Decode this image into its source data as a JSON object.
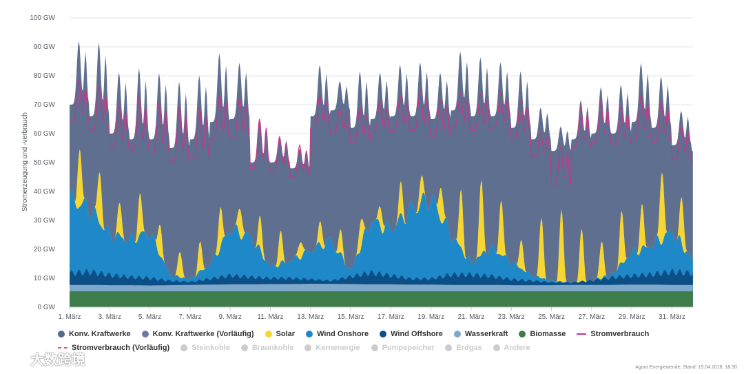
{
  "chart_data": {
    "type": "area",
    "ylabel": "Stromerzeugung und -verbrauch",
    "ylim": [
      0,
      100
    ],
    "y_ticks": [
      "0 GW",
      "10 GW",
      "20 GW",
      "30 GW",
      "40 GW",
      "50 GW",
      "60 GW",
      "70 GW",
      "80 GW",
      "90 GW",
      "100 GW"
    ],
    "x_ticks": [
      "1. März",
      "3. März",
      "5. März",
      "7. März",
      "9. März",
      "11. März",
      "13. März",
      "15. März",
      "17. März",
      "19. März",
      "21. März",
      "23. März",
      "25. März",
      "27. März",
      "29. März",
      "31. März"
    ],
    "x_tick_days": [
      1,
      3,
      5,
      7,
      9,
      11,
      13,
      15,
      17,
      19,
      21,
      23,
      25,
      27,
      29,
      31
    ],
    "xlim_days": [
      1,
      32.05
    ],
    "series_order": [
      "biomasse",
      "wasserkraft",
      "wind_offshore",
      "wind_onshore",
      "solar",
      "konv"
    ],
    "series": {
      "biomasse": {
        "name": "Biomasse",
        "color": "#3e7d4b",
        "daily": [
          5.5,
          5.5
        ]
      },
      "wasserkraft": {
        "name": "Wasserkraft",
        "color": "#7ea7c9",
        "daily": [
          2.2,
          2.2,
          2.1,
          2.1,
          2.0,
          2.1,
          2.2,
          2.3,
          2.4,
          2.4,
          2.5,
          2.5,
          2.6,
          2.6,
          2.5,
          2.4,
          2.4,
          2.3,
          2.3,
          2.2,
          2.2,
          2.2,
          2.1,
          2.1,
          2.1,
          2.2,
          2.2,
          2.2,
          2.3,
          2.3,
          2.2,
          2.2
        ]
      },
      "wind_offshore": {
        "name": "Wind Offshore",
        "color": "#0c4f86",
        "daily": [
          4.0,
          4.5,
          3.5,
          2.8,
          2.5,
          1.5,
          1.0,
          2.0,
          3.0,
          2.5,
          2.0,
          2.0,
          1.5,
          1.0,
          2.5,
          4.0,
          3.0,
          2.0,
          2.0,
          3.5,
          3.5,
          3.0,
          2.0,
          1.5,
          1.0,
          0.8,
          1.5,
          2.5,
          3.0,
          3.5,
          4.5,
          4.0
        ]
      },
      "wind_onshore": {
        "name": "Wind Onshore",
        "color": "#1f88c9",
        "daily": [
          26,
          22,
          14,
          13,
          16,
          2,
          1,
          5,
          16,
          14,
          4,
          6,
          10,
          14,
          2,
          18,
          16,
          24,
          28,
          14,
          4,
          10,
          6,
          2,
          0.5,
          0,
          0,
          1,
          8,
          10,
          14,
          5
        ]
      },
      "solar": {
        "name": "Solar",
        "color": "#f6d633",
        "peak": [
          20,
          18,
          11,
          14,
          11,
          9,
          10,
          14,
          10,
          11,
          11,
          6,
          8,
          8,
          10,
          7,
          11,
          8,
          12,
          20,
          26,
          19,
          10,
          21,
          25,
          18,
          13,
          18,
          15,
          25,
          16,
          12
        ]
      },
      "konv": {
        "name": "Konv. Kraftwerke",
        "color": "#5e6f8f",
        "peak": [
          96,
          96,
          85,
          87,
          85,
          82,
          84,
          92,
          88,
          67,
          61,
          56,
          87,
          80,
          85,
          84,
          87,
          88,
          84,
          92,
          90,
          88,
          85,
          71,
          64,
          74,
          79,
          80,
          88,
          83,
          70,
          66
        ],
        "trough": [
          70,
          66,
          60,
          58,
          58,
          55,
          58,
          64,
          65,
          50,
          50,
          48,
          66,
          68,
          62,
          65,
          66,
          66,
          65,
          68,
          66,
          66,
          62,
          58,
          54,
          58,
          60,
          60,
          64,
          62,
          56,
          54
        ]
      },
      "stromverbrauch": {
        "name": "Stromverbrauch",
        "color": "#c2398a",
        "peak": [
          81,
          79,
          73,
          76,
          74,
          73,
          72,
          76,
          75,
          68,
          61,
          58,
          75,
          70,
          71,
          73,
          75,
          77,
          74,
          76,
          76,
          76,
          74,
          62,
          58,
          72,
          74,
          72,
          76,
          74,
          65,
          58
        ],
        "trough": [
          64,
          61,
          55,
          54,
          53,
          50,
          51,
          58,
          58,
          48,
          47,
          45,
          62,
          60,
          57,
          60,
          61,
          61,
          59,
          62,
          61,
          62,
          58,
          52,
          42,
          55,
          57,
          56,
          58,
          57,
          51,
          50
        ]
      }
    }
  },
  "legend": {
    "active": [
      {
        "label": "Konv. Kraftwerke",
        "color": "#56688c",
        "style": "dot"
      },
      {
        "label": "Konv. Kraftwerke (Vorläufig)",
        "color": "#6d7aa6",
        "style": "dot"
      },
      {
        "label": "Solar",
        "color": "#f6d633",
        "style": "dot"
      },
      {
        "label": "Wind Onshore",
        "color": "#1f88c9",
        "style": "dot"
      },
      {
        "label": "Wind Offshore",
        "color": "#0c4f86",
        "style": "dot"
      },
      {
        "label": "Wasserkraft",
        "color": "#7ea7c9",
        "style": "dot"
      },
      {
        "label": "Biomasse",
        "color": "#3e7d4b",
        "style": "dot"
      },
      {
        "label": "Stromverbrauch",
        "color": "#c2398a",
        "style": "line"
      }
    ],
    "second_row": [
      {
        "label": "Stromverbrauch (Vorläufig)",
        "color": "#d95a8a",
        "style": "dash",
        "active": true
      },
      {
        "label": "Steinkohle",
        "color": "#cccccc",
        "style": "dot",
        "active": false
      },
      {
        "label": "Braunkohle",
        "color": "#cccccc",
        "style": "dot",
        "active": false
      },
      {
        "label": "Kernenergie",
        "color": "#cccccc",
        "style": "dot",
        "active": false
      },
      {
        "label": "Pumpspeicher",
        "color": "#cccccc",
        "style": "dot",
        "active": false
      },
      {
        "label": "Erdgas",
        "color": "#cccccc",
        "style": "dot",
        "active": false
      },
      {
        "label": "Andere",
        "color": "#cccccc",
        "style": "dot",
        "active": false
      }
    ]
  },
  "credit": "Agora Energiewende; Stand: 15.04.2018, 18:30",
  "watermark": "大数跨境"
}
